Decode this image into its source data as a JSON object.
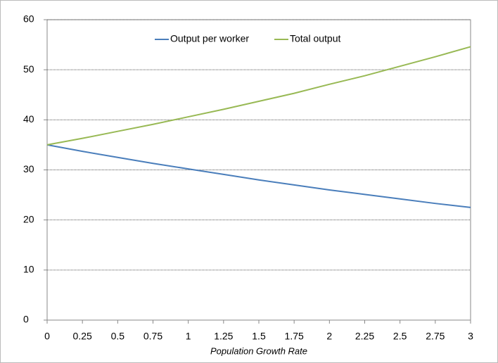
{
  "chart_data": {
    "type": "line",
    "x_label": "Population Growth Rate",
    "x": [
      0,
      0.25,
      0.5,
      0.75,
      1,
      1.25,
      1.5,
      1.75,
      2,
      2.25,
      2.5,
      2.75,
      3
    ],
    "series": [
      {
        "name": "Output per worker",
        "color": "#4a7ebb",
        "values": [
          35,
          33.7,
          32.5,
          31.3,
          30.2,
          29.1,
          28.0,
          27.0,
          26.0,
          25.1,
          24.2,
          23.3,
          22.5
        ]
      },
      {
        "name": "Total output",
        "color": "#98b954",
        "values": [
          35,
          36.3,
          37.7,
          39.1,
          40.6,
          42.1,
          43.7,
          45.3,
          47.1,
          48.8,
          50.7,
          52.6,
          54.6
        ]
      }
    ],
    "xlim": [
      0,
      3
    ],
    "xticks": [
      0,
      0.25,
      0.5,
      0.75,
      1,
      1.25,
      1.5,
      1.75,
      2,
      2.25,
      2.5,
      2.75,
      3
    ],
    "ylim": [
      0,
      60
    ],
    "yticks": [
      0,
      10,
      20,
      30,
      40,
      50,
      60
    ],
    "grid": true,
    "legend": "top"
  }
}
